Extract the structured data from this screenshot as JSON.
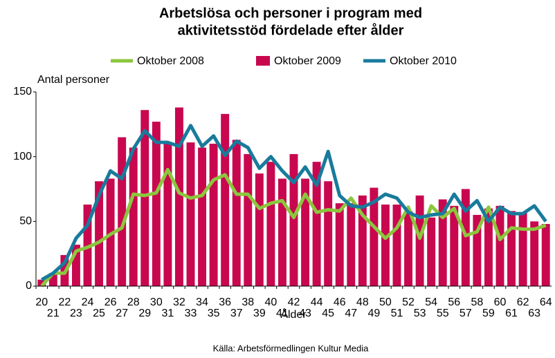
{
  "chart_data": {
    "type": "bar-line",
    "title": [
      "Arbetslösa och personer i program med",
      "aktivitetsstöd fördelade efter ålder"
    ],
    "y_label": "Antal personer",
    "x_label": "Ålder",
    "source": "Källa: Arbetsförmedlingen Kultur Media",
    "categories": [
      "20",
      "21",
      "22",
      "23",
      "24",
      "25",
      "26",
      "27",
      "28",
      "29",
      "30",
      "31",
      "32",
      "33",
      "34",
      "35",
      "36",
      "37",
      "38",
      "39",
      "40",
      "41",
      "42",
      "43",
      "44",
      "45",
      "46",
      "47",
      "48",
      "49",
      "50",
      "51",
      "52",
      "53",
      "54",
      "55",
      "56",
      "57",
      "58",
      "59",
      "60",
      "61",
      "62",
      "63",
      "64"
    ],
    "series": [
      {
        "name": "Oktober 2008",
        "type": "line",
        "color": "#8cc63e",
        "values": [
          0,
          10,
          10,
          27,
          30,
          34,
          40,
          45,
          71,
          70,
          72,
          90,
          72,
          68,
          70,
          82,
          86,
          71,
          71,
          60,
          64,
          66,
          53,
          71,
          57,
          59,
          58,
          68,
          55,
          46,
          37,
          45,
          61,
          37,
          62,
          53,
          60,
          39,
          42,
          61,
          36,
          45,
          44,
          44,
          47
        ]
      },
      {
        "name": "Oktober 2009",
        "type": "bar",
        "color": "#c8074f",
        "values": [
          5,
          10,
          24,
          32,
          63,
          81,
          83,
          115,
          107,
          136,
          127,
          111,
          138,
          111,
          107,
          110,
          133,
          113,
          102,
          87,
          96,
          83,
          102,
          83,
          96,
          81,
          64,
          64,
          70,
          76,
          63,
          63,
          58,
          70,
          53,
          67,
          62,
          75,
          55,
          60,
          62,
          58,
          57,
          50,
          48
        ]
      },
      {
        "name": "Oktober 2010",
        "type": "line",
        "color": "#197b9c",
        "values": [
          5,
          10,
          18,
          37,
          47,
          70,
          89,
          83,
          106,
          120,
          111,
          111,
          108,
          124,
          108,
          116,
          101,
          112,
          107,
          91,
          100,
          89,
          80,
          92,
          78,
          104,
          70,
          62,
          61,
          65,
          71,
          68,
          57,
          53,
          55,
          56,
          71,
          58,
          66,
          50,
          61,
          56,
          56,
          62,
          50
        ]
      }
    ],
    "ylim": [
      0,
      150
    ],
    "yticks": [
      0,
      50,
      100,
      150
    ]
  }
}
